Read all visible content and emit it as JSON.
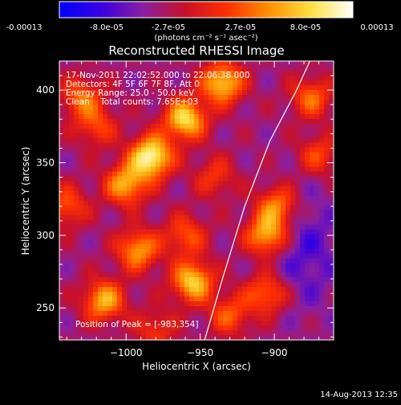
{
  "colorbar": {
    "tick_labels": [
      "-0.00013",
      "-8.0e-05",
      "-2.7e-05",
      "2.7e-05",
      "8.0e-05",
      "0.00013"
    ],
    "unit_label": "(photons cm⁻² s⁻¹ asec⁻²)",
    "stops": [
      "#0000ff",
      "#3a00e0",
      "#8a1fa0",
      "#c8102a",
      "#ff3000",
      "#ff9000",
      "#ffe040",
      "#ffffff"
    ]
  },
  "chart_data": {
    "type": "heatmap",
    "title": "Reconstructed RHESSI Image",
    "xlabel": "Heliocentric X (arcsec)",
    "ylabel": "Heliocentric Y (arcsec)",
    "xlim": [
      -1045,
      -860
    ],
    "ylim": [
      228,
      420
    ],
    "x_ticks": [
      -1000,
      -950,
      -900
    ],
    "y_ticks": [
      250,
      300,
      350,
      400
    ],
    "x_tick_labels": [
      "−1000",
      "−950",
      "−900"
    ],
    "y_tick_labels": [
      "250",
      "300",
      "350",
      "400"
    ],
    "annotations": [
      "17-Nov-2011 22:02:52.000 to 22:06:38.000",
      "Detectors: 4F 5F 6F 7F 8F, Att 0",
      "Energy Range: 25.0 - 50.0 keV",
      "Clean    Total counts: 7.65E+03"
    ],
    "peak_label": "Position of Peak = [-983,354]",
    "peak": [
      -983,
      354
    ],
    "limb_points": [
      [
        -947,
        228
      ],
      [
        -935,
        270
      ],
      [
        -920,
        320
      ],
      [
        -903,
        365
      ],
      [
        -885,
        400
      ],
      [
        -876,
        420
      ]
    ],
    "sources": [
      {
        "x": -983,
        "y": 354,
        "amp": 1.0
      },
      {
        "x": -960,
        "y": 380,
        "amp": 0.85
      },
      {
        "x": -935,
        "y": 405,
        "amp": 0.8
      },
      {
        "x": -1000,
        "y": 335,
        "amp": 0.7
      },
      {
        "x": -905,
        "y": 300,
        "amp": 0.75
      },
      {
        "x": -898,
        "y": 320,
        "amp": 0.6
      },
      {
        "x": -992,
        "y": 290,
        "amp": 0.65
      },
      {
        "x": -955,
        "y": 268,
        "amp": 0.8
      },
      {
        "x": -960,
        "y": 300,
        "amp": 0.45
      },
      {
        "x": -1030,
        "y": 395,
        "amp": 0.5
      },
      {
        "x": -1015,
        "y": 255,
        "amp": 0.7
      },
      {
        "x": -870,
        "y": 355,
        "amp": 0.4
      },
      {
        "x": -930,
        "y": 245,
        "amp": 0.45
      },
      {
        "x": -905,
        "y": 260,
        "amp": 0.55
      },
      {
        "x": -1040,
        "y": 320,
        "amp": 0.45
      },
      {
        "x": -875,
        "y": 395,
        "amp": 0.5
      },
      {
        "x": -980,
        "y": 235,
        "amp": 0.35
      },
      {
        "x": -940,
        "y": 340,
        "amp": 0.35
      },
      {
        "x": -1020,
        "y": 375,
        "amp": 0.4
      }
    ]
  },
  "footer": {
    "date": "14-Aug-2013 12:35"
  }
}
